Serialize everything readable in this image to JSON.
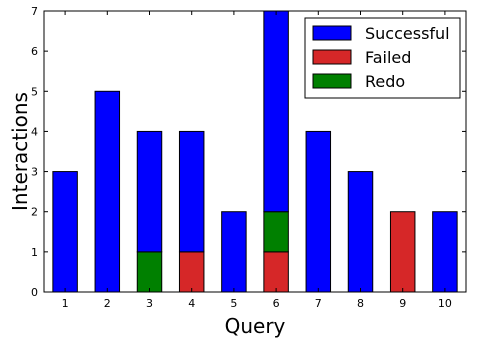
{
  "chart_data": {
    "type": "bar",
    "stacked": true,
    "title": "",
    "xlabel": "Query",
    "ylabel": "Interactions",
    "categories": [
      "1",
      "2",
      "3",
      "4",
      "5",
      "6",
      "7",
      "8",
      "9",
      "10"
    ],
    "ylim": [
      0,
      7
    ],
    "yticks": [
      "0",
      "1",
      "2",
      "3",
      "4",
      "5",
      "6",
      "7"
    ],
    "series": [
      {
        "name": "Redo",
        "color": "#008000",
        "values": [
          0,
          0,
          1,
          0,
          0,
          1,
          0,
          0,
          0,
          0
        ]
      },
      {
        "name": "Failed",
        "color": "#d62728",
        "values": [
          0,
          0,
          0,
          1,
          0,
          1,
          0,
          0,
          2,
          0
        ]
      },
      {
        "name": "Successful",
        "color": "#0000ff",
        "values": [
          3,
          5,
          3,
          3,
          2,
          5,
          4,
          3,
          0,
          2
        ]
      }
    ],
    "stack_order": [
      "Failed",
      "Redo",
      "Successful"
    ],
    "legend": {
      "placement": "top-right",
      "entries": [
        "Successful",
        "Failed",
        "Redo"
      ]
    },
    "grid": false
  }
}
